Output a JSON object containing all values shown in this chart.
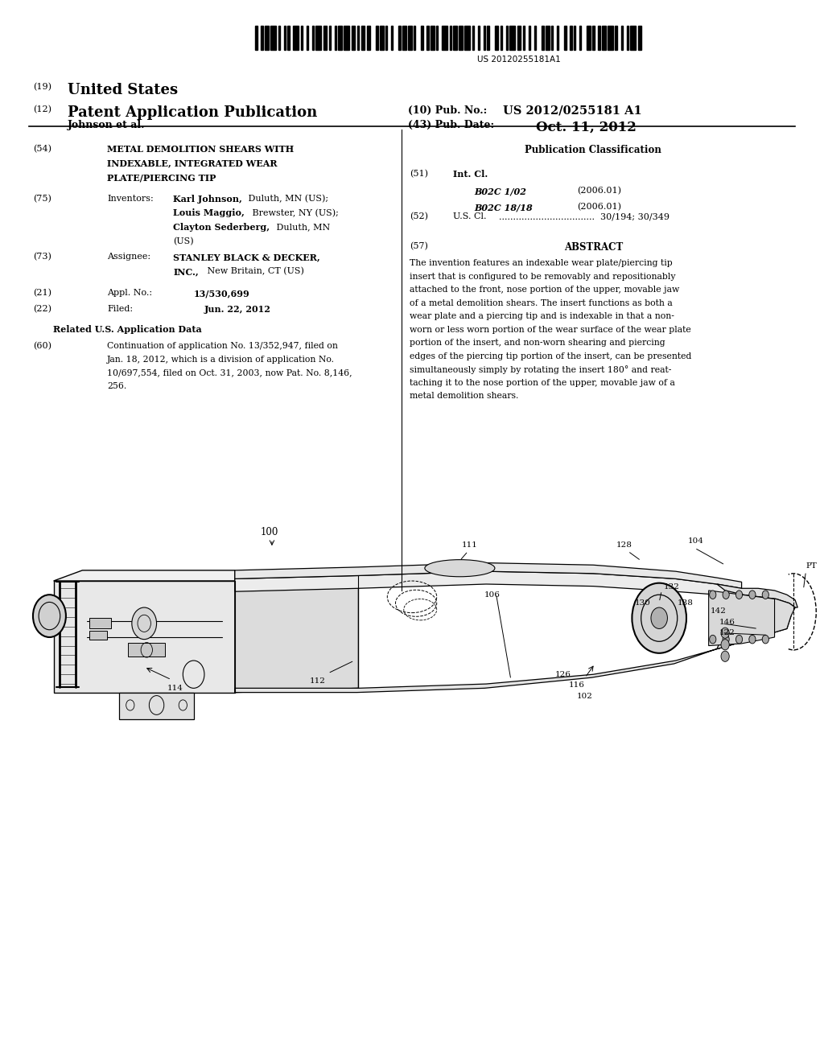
{
  "background_color": "#ffffff",
  "barcode_text": "US 20120255181A1",
  "pub_no": "US 2012/0255181 A1",
  "pub_date": "Oct. 11, 2012",
  "inventor_name": "Johnson et al.",
  "title_text_lines": [
    "METAL DEMOLITION SHEARS WITH",
    "INDEXABLE, INTEGRATED WEAR",
    "PLATE/PIERCING TIP"
  ],
  "inventors_text_line1": "Karl Johnson, Duluth, MN (US);",
  "inventors_text_line2": "Louis Maggio, Brewster, NY (US);",
  "inventors_text_line3": "Clayton Sederberg, Duluth, MN",
  "inventors_text_line4": "(US)",
  "assignee_line1": "STANLEY BLACK & DECKER,",
  "assignee_line2": "INC., New Britain, CT (US)",
  "appl_no": "13/530,699",
  "filed_date": "Jun. 22, 2012",
  "related_text_lines": [
    "Continuation of application No. 13/352,947, filed on",
    "Jan. 18, 2012, which is a division of application No.",
    "10/697,554, filed on Oct. 31, 2003, now Pat. No. 8,146,",
    "256."
  ],
  "intl_cl_lines": [
    [
      "B02C 1/02",
      "(2006.01)"
    ],
    [
      "B02C 18/18",
      "(2006.01)"
    ]
  ],
  "us_cl_value": "30/194; 30/349",
  "abstract_text_lines": [
    "The invention features an indexable wear plate/piercing tip",
    "insert that is configured to be removably and repositionably",
    "attached to the front, nose portion of the upper, movable jaw",
    "of a metal demolition shears. The insert functions as both a",
    "wear plate and a piercing tip and is indexable in that a non-",
    "worn or less worn portion of the wear surface of the wear plate",
    "portion of the insert, and non-worn shearing and piercing",
    "edges of the piercing tip portion of the insert, can be presented",
    "simultaneously simply by rotating the insert 180° and reat-",
    "taching it to the nose portion of the upper, movable jaw of a",
    "metal demolition shears."
  ]
}
